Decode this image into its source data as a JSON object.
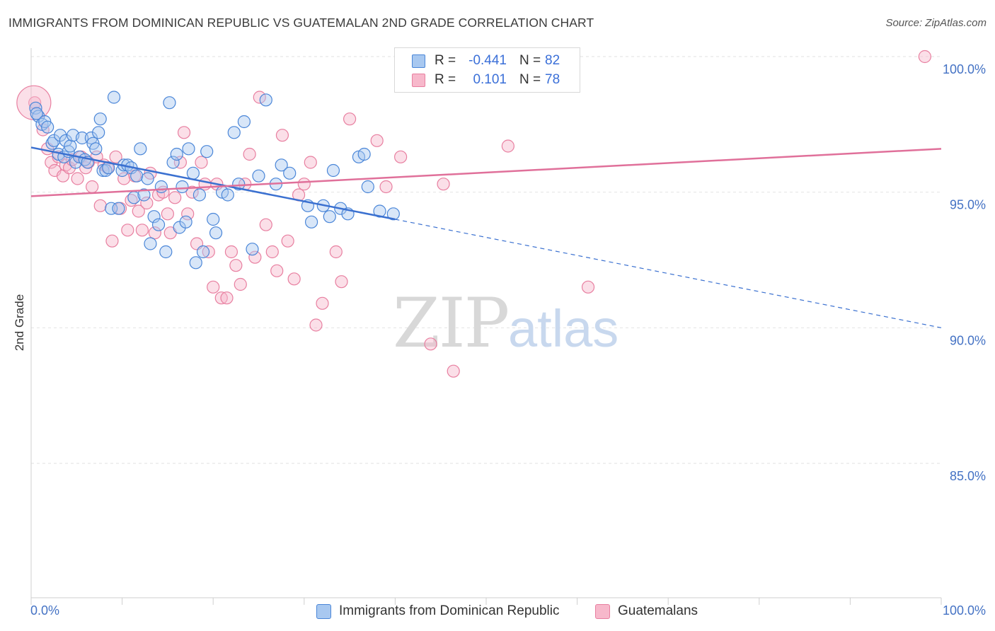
{
  "title": "IMMIGRANTS FROM DOMINICAN REPUBLIC VS GUATEMALAN 2ND GRADE CORRELATION CHART",
  "source": "Source: ZipAtlas.com",
  "watermark": {
    "zip": "ZIP",
    "atlas": "atlas"
  },
  "colors": {
    "blue_fill": "#a8c8f0",
    "blue_stroke": "#4a86d8",
    "blue_line": "#3a70d0",
    "pink_fill": "#f7b8cb",
    "pink_stroke": "#e87fa0",
    "pink_line": "#e0709a",
    "axis_text": "#4472c4",
    "grid": "#e2e2e2"
  },
  "legend": {
    "rows": [
      {
        "r_label": "R =",
        "r_value": "-0.441",
        "n_label": "N =",
        "n_value": "82"
      },
      {
        "r_label": "R =",
        "r_value": "0.101",
        "n_label": "N =",
        "n_value": "78"
      }
    ]
  },
  "bottom_legend": {
    "series1": "Immigrants from Dominican Republic",
    "series2": "Guatemalans"
  },
  "chart_data": {
    "type": "scatter",
    "title": "IMMIGRANTS FROM DOMINICAN REPUBLIC VS GUATEMALAN 2ND GRADE CORRELATION CHART",
    "xlabel": "",
    "ylabel": "2nd Grade",
    "xlim": [
      0,
      100
    ],
    "ylim": [
      80.5,
      100.9
    ],
    "x_tick_labels": [
      "0.0%",
      "100.0%"
    ],
    "y_ticks": [
      85,
      90,
      95,
      100
    ],
    "y_tick_labels": [
      "85.0%",
      "90.0%",
      "95.0%",
      "100.0%"
    ],
    "grid": true,
    "legend_position": "top-center",
    "series": [
      {
        "name": "Immigrants from Dominican Republic",
        "R": -0.441,
        "N": 82,
        "trend": {
          "x0": 0,
          "y0": 96.65,
          "x1_solid": 40,
          "y1_solid": 94.0,
          "x1_dashed": 100,
          "y1_dashed": 90.0
        },
        "points": [
          [
            0.5,
            98.1
          ],
          [
            0.8,
            97.8
          ],
          [
            1.2,
            97.5
          ],
          [
            0.6,
            97.9
          ],
          [
            1.5,
            97.6
          ],
          [
            1.8,
            97.4
          ],
          [
            2.3,
            96.8
          ],
          [
            2.5,
            96.9
          ],
          [
            3.0,
            96.4
          ],
          [
            3.2,
            97.1
          ],
          [
            3.6,
            96.3
          ],
          [
            3.8,
            96.9
          ],
          [
            4.1,
            96.5
          ],
          [
            4.3,
            96.7
          ],
          [
            4.6,
            97.1
          ],
          [
            4.9,
            96.1
          ],
          [
            5.3,
            96.3
          ],
          [
            5.6,
            97.0
          ],
          [
            5.9,
            96.2
          ],
          [
            6.2,
            96.1
          ],
          [
            6.6,
            97.0
          ],
          [
            6.8,
            96.8
          ],
          [
            7.1,
            96.6
          ],
          [
            7.4,
            97.2
          ],
          [
            7.6,
            97.7
          ],
          [
            7.9,
            95.8
          ],
          [
            8.2,
            95.8
          ],
          [
            8.5,
            95.9
          ],
          [
            8.8,
            94.4
          ],
          [
            9.1,
            98.5
          ],
          [
            9.6,
            94.4
          ],
          [
            10.0,
            95.8
          ],
          [
            10.2,
            96.0
          ],
          [
            10.6,
            96.0
          ],
          [
            11.0,
            95.9
          ],
          [
            11.3,
            94.8
          ],
          [
            11.6,
            95.6
          ],
          [
            12.0,
            96.6
          ],
          [
            12.4,
            94.9
          ],
          [
            12.8,
            95.5
          ],
          [
            13.1,
            93.1
          ],
          [
            13.5,
            94.1
          ],
          [
            14.0,
            93.8
          ],
          [
            14.3,
            95.2
          ],
          [
            14.8,
            92.8
          ],
          [
            15.2,
            98.3
          ],
          [
            15.6,
            96.1
          ],
          [
            16.0,
            96.4
          ],
          [
            16.3,
            93.7
          ],
          [
            16.6,
            95.2
          ],
          [
            17.0,
            93.9
          ],
          [
            17.3,
            96.6
          ],
          [
            17.8,
            95.7
          ],
          [
            18.1,
            92.4
          ],
          [
            18.5,
            94.9
          ],
          [
            18.9,
            92.8
          ],
          [
            19.3,
            96.5
          ],
          [
            20.0,
            94.0
          ],
          [
            20.3,
            93.5
          ],
          [
            21.0,
            95.0
          ],
          [
            21.6,
            94.9
          ],
          [
            22.3,
            97.2
          ],
          [
            22.8,
            95.3
          ],
          [
            23.4,
            97.6
          ],
          [
            24.3,
            92.9
          ],
          [
            25.0,
            95.6
          ],
          [
            25.8,
            98.4
          ],
          [
            26.9,
            95.3
          ],
          [
            27.5,
            96.0
          ],
          [
            28.4,
            95.7
          ],
          [
            30.4,
            94.5
          ],
          [
            30.8,
            93.9
          ],
          [
            32.1,
            94.5
          ],
          [
            32.8,
            94.1
          ],
          [
            33.2,
            95.8
          ],
          [
            34.0,
            94.4
          ],
          [
            34.8,
            94.2
          ],
          [
            36.0,
            96.3
          ],
          [
            36.6,
            96.4
          ],
          [
            37.0,
            95.2
          ],
          [
            38.3,
            94.3
          ],
          [
            39.8,
            94.2
          ]
        ]
      },
      {
        "name": "Guatemalans",
        "R": 0.101,
        "N": 78,
        "trend": {
          "x0": 0,
          "y0": 94.85,
          "x1": 100,
          "y1": 96.6
        },
        "points": [
          [
            0.4,
            98.3
          ],
          [
            1.3,
            97.3
          ],
          [
            1.8,
            96.6
          ],
          [
            2.2,
            96.1
          ],
          [
            2.6,
            95.8
          ],
          [
            3.0,
            96.3
          ],
          [
            3.5,
            95.6
          ],
          [
            3.8,
            96.0
          ],
          [
            4.2,
            95.9
          ],
          [
            4.5,
            96.2
          ],
          [
            5.1,
            95.5
          ],
          [
            5.5,
            96.3
          ],
          [
            6.0,
            95.9
          ],
          [
            6.3,
            96.1
          ],
          [
            6.7,
            95.2
          ],
          [
            7.2,
            96.3
          ],
          [
            7.6,
            94.5
          ],
          [
            8.0,
            96.0
          ],
          [
            8.4,
            95.9
          ],
          [
            8.9,
            93.2
          ],
          [
            9.3,
            96.3
          ],
          [
            9.8,
            94.4
          ],
          [
            10.2,
            95.5
          ],
          [
            10.6,
            93.6
          ],
          [
            11.0,
            94.7
          ],
          [
            11.4,
            95.6
          ],
          [
            11.8,
            94.3
          ],
          [
            12.2,
            93.6
          ],
          [
            12.7,
            94.6
          ],
          [
            13.1,
            95.7
          ],
          [
            13.6,
            93.5
          ],
          [
            14.0,
            94.9
          ],
          [
            14.5,
            95.0
          ],
          [
            15.0,
            94.2
          ],
          [
            15.3,
            93.5
          ],
          [
            15.8,
            94.8
          ],
          [
            16.4,
            96.1
          ],
          [
            16.8,
            97.2
          ],
          [
            17.2,
            94.2
          ],
          [
            17.7,
            95.0
          ],
          [
            18.2,
            93.1
          ],
          [
            18.7,
            96.1
          ],
          [
            19.1,
            95.3
          ],
          [
            19.5,
            92.8
          ],
          [
            20.0,
            91.5
          ],
          [
            20.4,
            95.3
          ],
          [
            20.9,
            91.1
          ],
          [
            21.5,
            91.1
          ],
          [
            22.0,
            92.8
          ],
          [
            22.5,
            92.3
          ],
          [
            23.0,
            91.6
          ],
          [
            23.5,
            95.3
          ],
          [
            24.0,
            96.4
          ],
          [
            24.6,
            92.6
          ],
          [
            25.1,
            98.5
          ],
          [
            25.8,
            93.8
          ],
          [
            26.5,
            92.8
          ],
          [
            27.0,
            92.1
          ],
          [
            27.6,
            97.1
          ],
          [
            28.2,
            93.2
          ],
          [
            28.9,
            91.8
          ],
          [
            29.4,
            94.9
          ],
          [
            30.0,
            95.3
          ],
          [
            30.7,
            96.1
          ],
          [
            31.3,
            90.1
          ],
          [
            32.0,
            90.9
          ],
          [
            33.5,
            92.8
          ],
          [
            34.1,
            91.7
          ],
          [
            35.0,
            97.7
          ],
          [
            38.0,
            96.9
          ],
          [
            39.0,
            95.2
          ],
          [
            40.6,
            96.3
          ],
          [
            43.9,
            89.4
          ],
          [
            45.3,
            95.3
          ],
          [
            46.4,
            88.4
          ],
          [
            52.4,
            96.7
          ],
          [
            61.2,
            91.5
          ],
          [
            98.2,
            100.0
          ]
        ]
      }
    ]
  }
}
